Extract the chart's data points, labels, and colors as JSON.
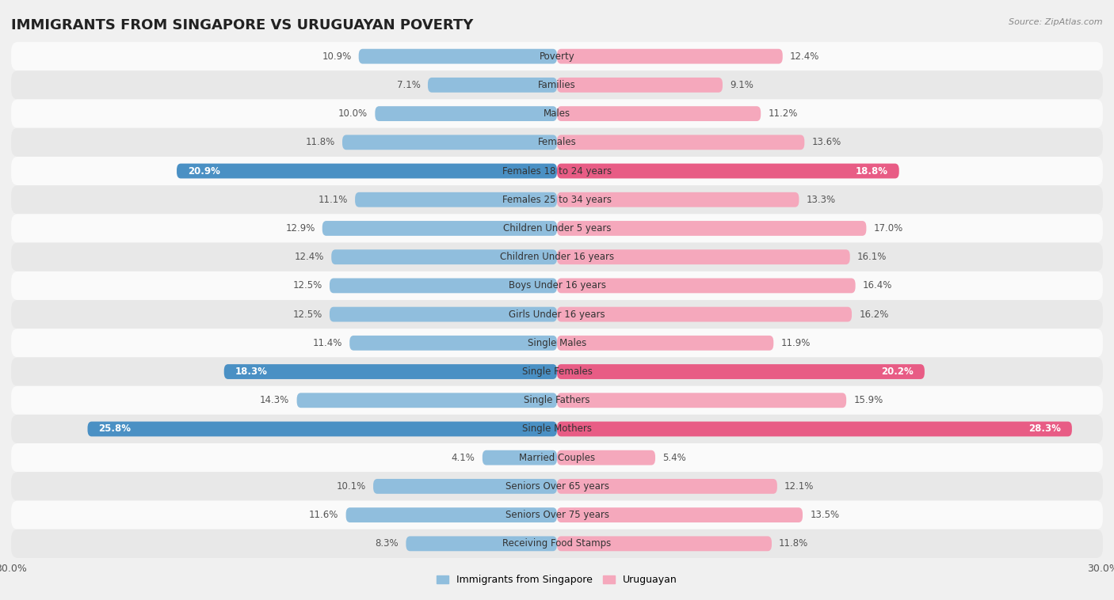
{
  "title": "IMMIGRANTS FROM SINGAPORE VS URUGUAYAN POVERTY",
  "source": "Source: ZipAtlas.com",
  "categories": [
    "Poverty",
    "Families",
    "Males",
    "Females",
    "Females 18 to 24 years",
    "Females 25 to 34 years",
    "Children Under 5 years",
    "Children Under 16 years",
    "Boys Under 16 years",
    "Girls Under 16 years",
    "Single Males",
    "Single Females",
    "Single Fathers",
    "Single Mothers",
    "Married Couples",
    "Seniors Over 65 years",
    "Seniors Over 75 years",
    "Receiving Food Stamps"
  ],
  "singapore_values": [
    10.9,
    7.1,
    10.0,
    11.8,
    20.9,
    11.1,
    12.9,
    12.4,
    12.5,
    12.5,
    11.4,
    18.3,
    14.3,
    25.8,
    4.1,
    10.1,
    11.6,
    8.3
  ],
  "uruguayan_values": [
    12.4,
    9.1,
    11.2,
    13.6,
    18.8,
    13.3,
    17.0,
    16.1,
    16.4,
    16.2,
    11.9,
    20.2,
    15.9,
    28.3,
    5.4,
    12.1,
    13.5,
    11.8
  ],
  "singapore_color": "#90bedd",
  "uruguayan_color": "#f5a8bc",
  "singapore_highlight_color": "#4a90c4",
  "uruguayan_highlight_color": "#e85c85",
  "highlight_rows": [
    4,
    11,
    13
  ],
  "axis_max": 30.0,
  "legend_singapore": "Immigrants from Singapore",
  "legend_uruguayan": "Uruguayan",
  "bg_color": "#f0f0f0",
  "row_bg_even": "#fafafa",
  "row_bg_odd": "#e8e8e8",
  "bar_height": 0.52,
  "title_fontsize": 13,
  "label_fontsize": 8.5,
  "value_fontsize": 8.5
}
